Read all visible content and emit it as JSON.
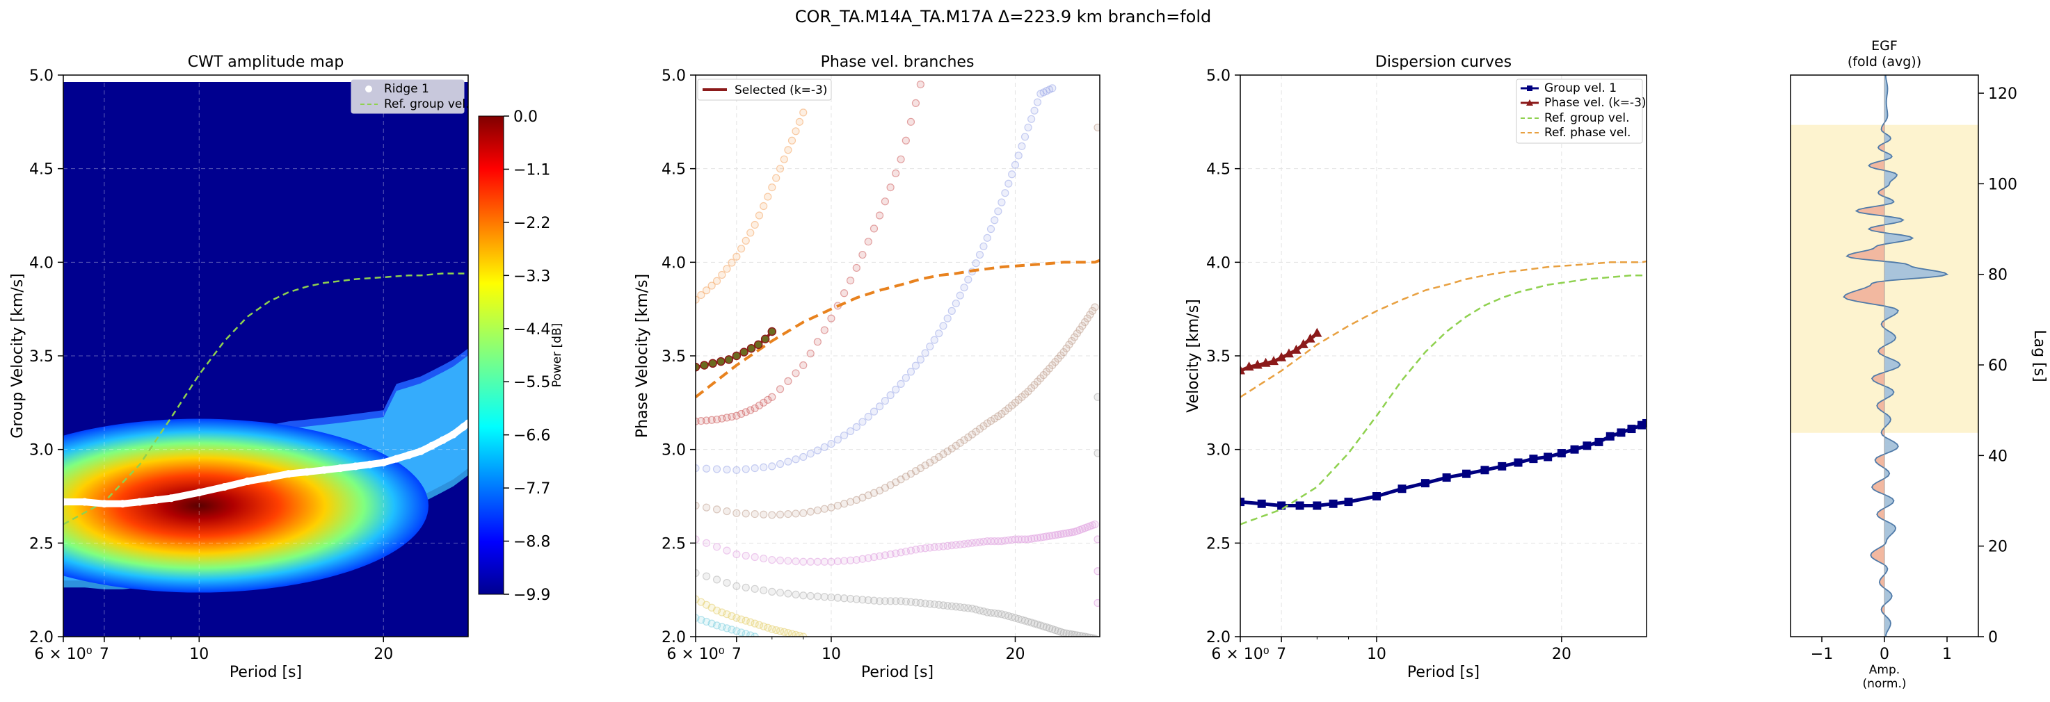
{
  "suptitle": "COR_TA.M14A_TA.M17A  Δ=223.9 km  branch=fold",
  "chart_data": [
    {
      "type": "heatmap",
      "title": "CWT amplitude map",
      "xlabel": "Period [s]",
      "ylabel": "Group Velocity [km/s]",
      "xscale": "log",
      "xlim": [
        6,
        27.5
      ],
      "ylim": [
        2.0,
        5.0
      ],
      "xticks": [
        {
          "v": 6,
          "label": "6 × 10⁰"
        },
        {
          "v": 7,
          "label": "7"
        },
        {
          "v": 10,
          "label": "10"
        },
        {
          "v": 20,
          "label": "20"
        }
      ],
      "yticks": [
        "2.0",
        "2.5",
        "3.0",
        "3.5",
        "4.0",
        "4.5",
        "5.0"
      ],
      "grid": true,
      "colormap": "jet",
      "colorbar": {
        "label": "Power [dB]",
        "min": -9.9,
        "max": 0.0,
        "ticks": [
          "0.0",
          "−1.1",
          "−2.2",
          "−3.3",
          "−4.4",
          "−5.5",
          "−6.6",
          "−7.7",
          "−8.8",
          "−9.9"
        ]
      },
      "legend": {
        "placement": "top-right",
        "entries": [
          "Ridge 1",
          "Ref. group vel."
        ]
      },
      "ridge": {
        "name": "Ridge 1",
        "color": "#ffffff",
        "x": [
          6,
          6.5,
          7,
          7.5,
          8,
          8.5,
          9,
          10,
          11,
          12,
          13,
          14,
          15,
          16,
          17,
          18,
          19,
          20,
          21,
          22,
          23,
          24,
          25,
          26,
          27,
          27.5
        ],
        "y": [
          2.72,
          2.72,
          2.71,
          2.71,
          2.72,
          2.73,
          2.74,
          2.77,
          2.8,
          2.83,
          2.85,
          2.87,
          2.88,
          2.89,
          2.9,
          2.91,
          2.92,
          2.93,
          2.95,
          2.97,
          2.99,
          3.02,
          3.05,
          3.08,
          3.12,
          3.14
        ]
      },
      "reference": {
        "name": "Ref. group vel.",
        "color": "#8fd14f",
        "x": [
          6,
          7,
          8,
          9,
          10,
          11,
          12,
          13,
          14,
          15,
          16,
          17,
          18,
          19,
          20,
          21,
          22,
          23,
          24,
          25,
          26,
          27,
          27.5
        ],
        "y": [
          2.6,
          2.72,
          2.92,
          3.17,
          3.4,
          3.58,
          3.71,
          3.79,
          3.84,
          3.87,
          3.89,
          3.9,
          3.91,
          3.915,
          3.92,
          3.925,
          3.93,
          3.93,
          3.935,
          3.94,
          3.94,
          3.94,
          3.94
        ]
      },
      "energy": {
        "peak_x": 9.0,
        "peak_y": 2.67
      }
    },
    {
      "type": "scatter",
      "title": "Phase vel. branches",
      "xlabel": "Period [s]",
      "ylabel": "Phase Velocity [km/s]",
      "xscale": "log",
      "xlim": [
        6,
        27.5
      ],
      "ylim": [
        2.0,
        5.0
      ],
      "xticks": [
        {
          "v": 6,
          "label": "6 × 10⁰"
        },
        {
          "v": 7,
          "label": "7"
        },
        {
          "v": 10,
          "label": "10"
        },
        {
          "v": 20,
          "label": "20"
        }
      ],
      "yticks": [
        "2.0",
        "2.5",
        "3.0",
        "3.5",
        "4.0",
        "4.5",
        "5.0"
      ],
      "grid": true,
      "legend": {
        "placement": "top-left",
        "entries": [
          "Selected (k=-3)"
        ]
      },
      "branches": [
        {
          "color": "#f4a460",
          "x": [
            6,
            6.5,
            7,
            7.5,
            8,
            8.5,
            9
          ],
          "y": [
            3.8,
            3.9,
            4.03,
            4.2,
            4.4,
            4.6,
            4.8
          ]
        },
        {
          "color": "#cd5c5c",
          "x": [
            6,
            6.5,
            7,
            7.5,
            8,
            9,
            10,
            11,
            12,
            13,
            14
          ],
          "y": [
            3.15,
            3.16,
            3.18,
            3.22,
            3.28,
            3.45,
            3.7,
            3.97,
            4.25,
            4.55,
            4.95
          ]
        },
        {
          "color": "#9aa8e8",
          "x": [
            6,
            7,
            8,
            9,
            10,
            11,
            12,
            13,
            14,
            15,
            16,
            17,
            18,
            19,
            20,
            21,
            22,
            23
          ],
          "y": [
            2.9,
            2.89,
            2.91,
            2.96,
            3.03,
            3.12,
            3.23,
            3.35,
            3.48,
            3.62,
            3.78,
            3.95,
            4.13,
            4.32,
            4.52,
            4.72,
            4.9,
            4.93
          ]
        },
        {
          "color": "#c0a090",
          "x": [
            6,
            7,
            8,
            9,
            10,
            11,
            12,
            13,
            14,
            15,
            16,
            17,
            18,
            19,
            20,
            21,
            22,
            23,
            24,
            25,
            26,
            27
          ],
          "y": [
            2.7,
            2.66,
            2.65,
            2.66,
            2.69,
            2.73,
            2.78,
            2.84,
            2.9,
            2.96,
            3.02,
            3.08,
            3.14,
            3.19,
            3.25,
            3.31,
            3.38,
            3.45,
            3.52,
            3.6,
            3.68,
            3.76
          ]
        },
        {
          "color": "#e0a0e0",
          "x": [
            6,
            7,
            8,
            9,
            10,
            11,
            12,
            13,
            14,
            15,
            16,
            17,
            18,
            19,
            20,
            21,
            22,
            23,
            24,
            25,
            26,
            27
          ],
          "y": [
            2.52,
            2.44,
            2.41,
            2.4,
            2.4,
            2.41,
            2.43,
            2.45,
            2.47,
            2.48,
            2.49,
            2.5,
            2.51,
            2.51,
            2.52,
            2.52,
            2.53,
            2.54,
            2.55,
            2.56,
            2.58,
            2.6
          ]
        },
        {
          "color": "#b0b0b0",
          "x": [
            6,
            7,
            8,
            9,
            10,
            11,
            12,
            13,
            14,
            15,
            16,
            17,
            18,
            19,
            20,
            21,
            22,
            23,
            24,
            25,
            26,
            27
          ],
          "y": [
            2.34,
            2.27,
            2.24,
            2.22,
            2.21,
            2.2,
            2.19,
            2.19,
            2.18,
            2.17,
            2.16,
            2.15,
            2.13,
            2.12,
            2.1,
            2.08,
            2.06,
            2.04,
            2.02,
            2.01,
            2.0,
            1.99
          ]
        },
        {
          "color": "#e6d070",
          "x": [
            6,
            6.5,
            7,
            7.5,
            8,
            8.5,
            9
          ],
          "y": [
            2.2,
            2.14,
            2.1,
            2.07,
            2.04,
            2.02,
            2.0
          ]
        },
        {
          "color": "#80d0e0",
          "x": [
            6,
            6.5,
            7,
            7.5
          ],
          "y": [
            2.1,
            2.06,
            2.03,
            2.0
          ]
        }
      ],
      "edge_points": {
        "x": 27.5,
        "y": [
          4.72,
          3.28,
          2.98,
          2.52,
          2.35,
          2.18
        ],
        "colors": [
          "#c0a090",
          "#b0b0b0",
          "#b0b0b0",
          "#e0a0e0",
          "#e0a0e0",
          "#e0a0e0"
        ]
      },
      "selected": {
        "name": "Selected (k=-3)",
        "color": "#8b1a1a",
        "x": [
          6.0,
          6.2,
          6.4,
          6.6,
          6.8,
          7.0,
          7.2,
          7.4,
          7.6,
          7.8,
          8.0
        ],
        "y": [
          3.44,
          3.45,
          3.46,
          3.47,
          3.48,
          3.5,
          3.52,
          3.54,
          3.56,
          3.59,
          3.63
        ]
      },
      "reference": {
        "color": "#e8821e",
        "x": [
          6,
          7,
          8,
          9,
          10,
          11,
          12,
          13,
          14,
          15,
          16,
          17,
          18,
          19,
          20,
          21,
          22,
          23,
          24,
          25,
          26,
          27,
          27.5
        ],
        "y": [
          3.28,
          3.45,
          3.58,
          3.68,
          3.75,
          3.81,
          3.85,
          3.88,
          3.91,
          3.93,
          3.94,
          3.955,
          3.965,
          3.975,
          3.98,
          3.985,
          3.99,
          3.995,
          4.0,
          4.0,
          4.0,
          4.0,
          4.01
        ]
      }
    },
    {
      "type": "line",
      "title": "Dispersion curves",
      "xlabel": "Period [s]",
      "ylabel": "Velocity [km/s]",
      "xscale": "log",
      "xlim": [
        6,
        27.5
      ],
      "ylim": [
        2.0,
        5.0
      ],
      "xticks": [
        {
          "v": 6,
          "label": "6 × 10⁰"
        },
        {
          "v": 7,
          "label": "7"
        },
        {
          "v": 10,
          "label": "10"
        },
        {
          "v": 20,
          "label": "20"
        }
      ],
      "yticks": [
        "2.0",
        "2.5",
        "3.0",
        "3.5",
        "4.0",
        "4.5",
        "5.0"
      ],
      "grid": true,
      "legend": {
        "placement": "top-right",
        "entries": [
          "Group vel. 1",
          "Phase vel. (k=-3)",
          "Ref. group vel.",
          "Ref. phase vel."
        ]
      },
      "series": [
        {
          "name": "Group vel. 1",
          "color": "#000080",
          "marker": "square",
          "x": [
            6,
            6.5,
            7,
            7.5,
            8,
            8.5,
            9,
            10,
            11,
            12,
            13,
            14,
            15,
            16,
            17,
            18,
            19,
            20,
            21,
            22,
            23,
            24,
            25,
            26,
            27,
            27.5
          ],
          "y": [
            2.72,
            2.71,
            2.7,
            2.7,
            2.7,
            2.71,
            2.72,
            2.75,
            2.79,
            2.82,
            2.85,
            2.87,
            2.89,
            2.91,
            2.93,
            2.95,
            2.96,
            2.98,
            3.0,
            3.02,
            3.04,
            3.07,
            3.09,
            3.11,
            3.13,
            3.14
          ]
        },
        {
          "name": "Phase vel. (k=-3)",
          "color": "#8b1a1a",
          "marker": "triangle",
          "x": [
            6.0,
            6.2,
            6.4,
            6.6,
            6.8,
            7.0,
            7.2,
            7.4,
            7.6,
            7.8,
            8.0
          ],
          "y": [
            3.42,
            3.44,
            3.45,
            3.46,
            3.47,
            3.49,
            3.51,
            3.53,
            3.56,
            3.59,
            3.62
          ]
        },
        {
          "name": "Ref. group vel.",
          "color": "#8fd14f",
          "dash": true,
          "x": [
            6,
            7,
            8,
            9,
            10,
            11,
            12,
            13,
            14,
            15,
            16,
            17,
            18,
            19,
            20,
            21,
            22,
            23,
            24,
            25,
            26,
            27,
            27.5
          ],
          "y": [
            2.6,
            2.68,
            2.8,
            2.98,
            3.18,
            3.37,
            3.52,
            3.63,
            3.71,
            3.77,
            3.81,
            3.84,
            3.86,
            3.88,
            3.89,
            3.9,
            3.91,
            3.915,
            3.92,
            3.925,
            3.93,
            3.93,
            3.935
          ]
        },
        {
          "name": "Ref. phase vel.",
          "color": "#e8a040",
          "dash": true,
          "x": [
            6,
            7,
            8,
            9,
            10,
            11,
            12,
            13,
            14,
            15,
            16,
            17,
            18,
            19,
            20,
            21,
            22,
            23,
            24,
            25,
            26,
            27,
            27.5
          ],
          "y": [
            3.28,
            3.42,
            3.56,
            3.66,
            3.74,
            3.8,
            3.85,
            3.88,
            3.91,
            3.93,
            3.945,
            3.955,
            3.965,
            3.975,
            3.98,
            3.985,
            3.99,
            3.995,
            4.0,
            4.0,
            4.0,
            4.0,
            4.005
          ]
        }
      ]
    },
    {
      "type": "area",
      "title": "EGF\n(fold (avg))",
      "title_lines": [
        "EGF",
        "(fold (avg))"
      ],
      "xlabel_lines": [
        "Amp.",
        "(norm.)"
      ],
      "ylabel": "Lag [s]",
      "xlim": [
        -1.5,
        1.5
      ],
      "ylim": [
        0,
        124
      ],
      "xticks": [
        "−1",
        "0",
        "1"
      ],
      "yticks": [
        "0",
        "20",
        "40",
        "60",
        "80",
        "100",
        "120"
      ],
      "window": {
        "from": 45,
        "to": 113,
        "color": "#fdf3cf"
      },
      "positive_color": "#a9c4db",
      "negative_color": "#f2b8a0",
      "line_color": "#4f7aa8",
      "trace": {
        "lag": [
          0,
          3,
          6,
          9,
          12,
          15,
          18,
          21,
          24,
          27,
          30,
          33,
          36,
          39,
          42,
          45,
          48,
          51,
          54,
          57,
          60,
          63,
          66,
          69,
          72,
          75,
          78,
          80,
          82,
          84,
          86,
          88,
          90,
          92,
          94,
          96,
          98,
          100,
          102,
          104,
          106,
          108,
          110,
          112,
          115,
          118,
          121,
          124
        ],
        "amp": [
          0.02,
          0.1,
          -0.05,
          0.12,
          -0.08,
          0.05,
          -0.22,
          0.03,
          0.18,
          -0.12,
          0.15,
          -0.2,
          0.08,
          -0.15,
          0.22,
          -0.05,
          0.1,
          -0.12,
          0.15,
          -0.2,
          0.25,
          -0.1,
          0.18,
          -0.05,
          0.22,
          -0.65,
          -0.2,
          1.0,
          0.4,
          -0.6,
          -0.15,
          0.45,
          -0.25,
          0.3,
          -0.45,
          0.15,
          -0.1,
          0.08,
          0.2,
          -0.25,
          0.12,
          -0.1,
          0.1,
          -0.05,
          0.05,
          0.03,
          0.05,
          0.02
        ]
      }
    }
  ]
}
